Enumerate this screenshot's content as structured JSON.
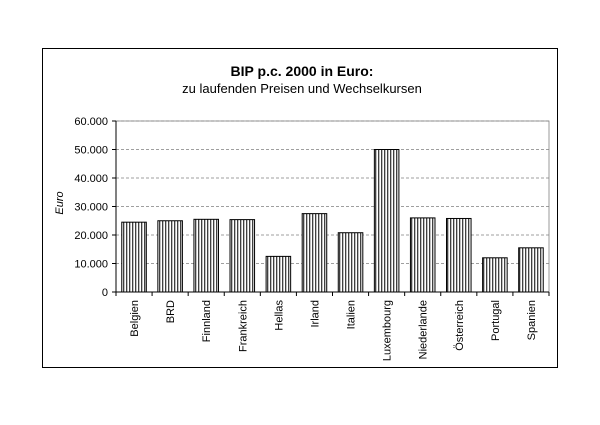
{
  "chart_data": {
    "type": "bar",
    "title": "BIP p.c. 2000 in Euro:",
    "subtitle": "zu laufenden Preisen und Wechselkursen",
    "xlabel": "",
    "ylabel": "Euro",
    "ylim": [
      0,
      60000
    ],
    "yticks": [
      0,
      10000,
      20000,
      30000,
      40000,
      50000,
      60000
    ],
    "ytick_labels": [
      "0",
      "10.000",
      "20.000",
      "30.000",
      "40.000",
      "50.000",
      "60.000"
    ],
    "grid": "horizontal dashed",
    "categories": [
      "Belgien",
      "BRD",
      "Finnland",
      "Frankreich",
      "Hellas",
      "Irland",
      "Italien",
      "Luxembourg",
      "Niederlande",
      "Österreich",
      "Portugal",
      "Spanien"
    ],
    "values": [
      24500,
      25000,
      25500,
      25400,
      12500,
      27500,
      20800,
      50000,
      26000,
      25800,
      12000,
      15500
    ],
    "bar_fill": "vertical-hatch",
    "colors": {
      "bar_stroke": "#000000",
      "grid": "#808080",
      "frame": "#000000"
    }
  }
}
